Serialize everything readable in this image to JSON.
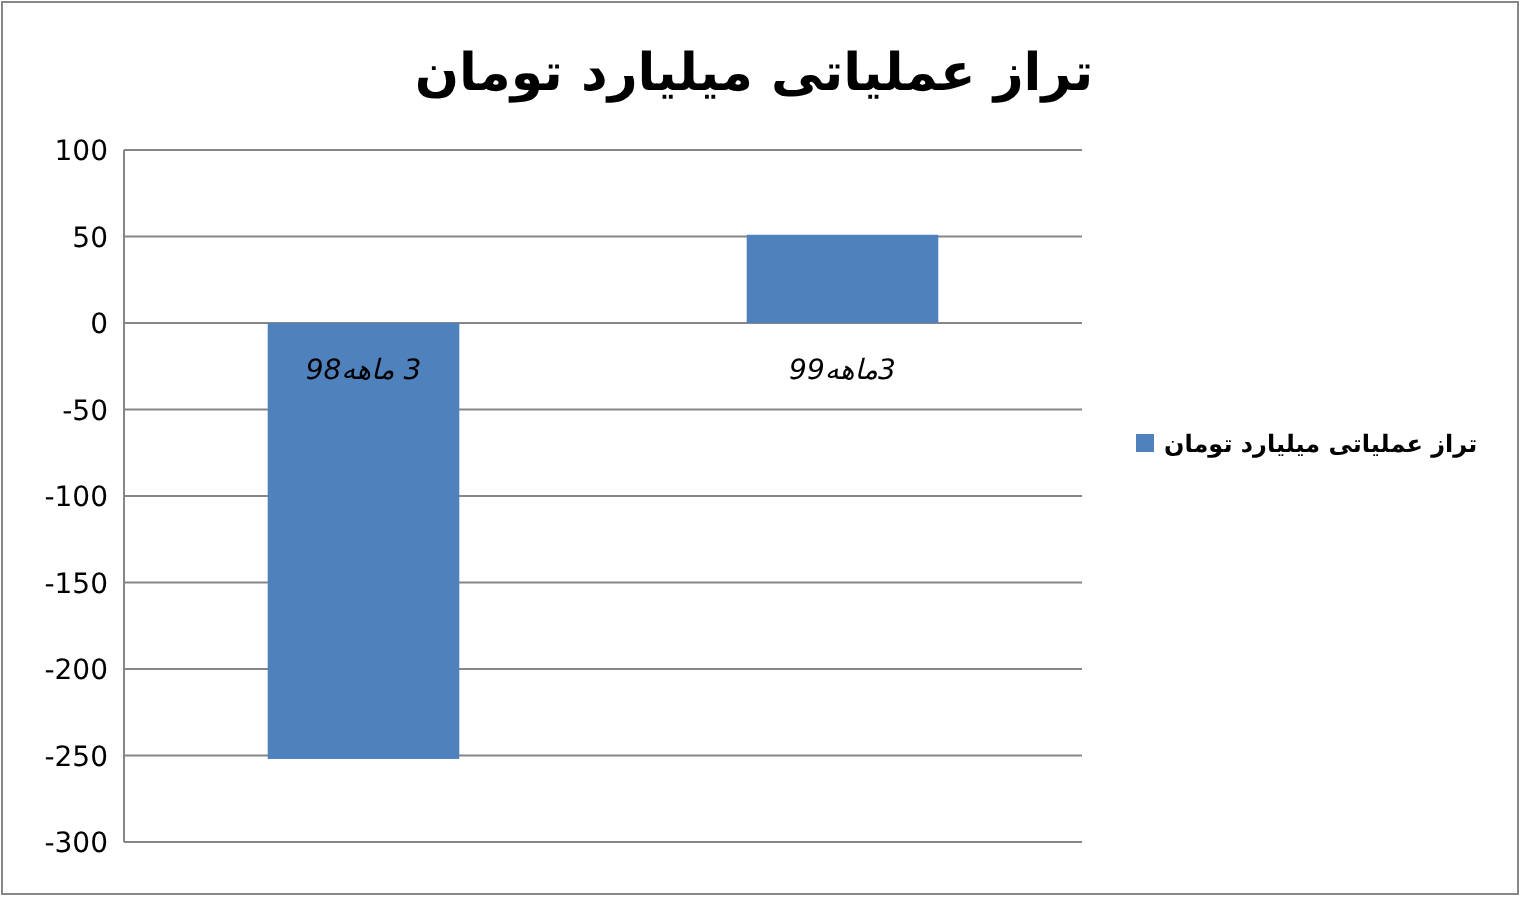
{
  "chart_data": {
    "type": "bar",
    "title": "تراز عملیاتی میلیارد تومان",
    "categories": [
      "3 ماهه98",
      "3ماهه99"
    ],
    "series": [
      {
        "name": "تراز عملیاتی میلیارد تومان",
        "color": "#4f81bd",
        "values": [
          -252,
          51
        ]
      }
    ],
    "ylim": [
      -300,
      100
    ],
    "yticks": [
      -300,
      -250,
      -200,
      -150,
      -100,
      -50,
      0,
      50,
      100
    ],
    "grid": "y",
    "legend": "right"
  }
}
